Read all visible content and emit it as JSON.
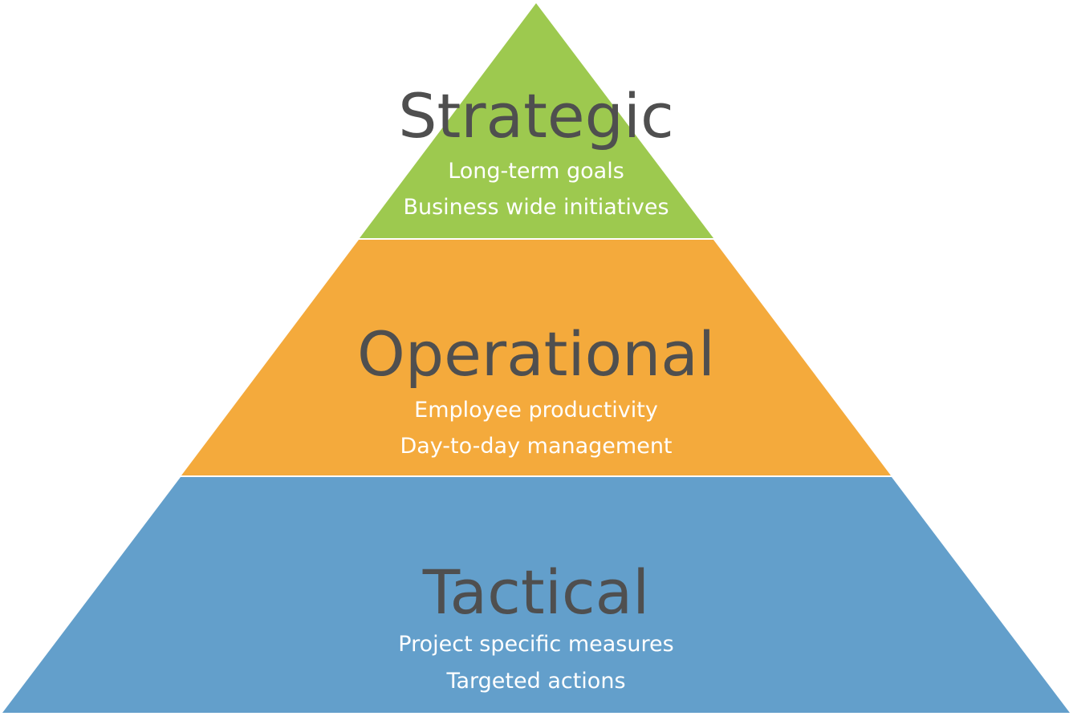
{
  "tiers": [
    {
      "name": "strategic",
      "title": "Strategic",
      "lines": [
        "Long-term goals",
        "Business wide initiatives"
      ],
      "color": "#9dc94f"
    },
    {
      "name": "operational",
      "title": "Operational",
      "lines": [
        "Employee productivity",
        "Day-to-day management"
      ],
      "color": "#f4aa3c"
    },
    {
      "name": "tactical",
      "title": "Tactical",
      "lines": [
        "Project specific measures",
        "Targeted actions"
      ],
      "color": "#639fcb"
    }
  ],
  "separator_color": "#ffffff"
}
